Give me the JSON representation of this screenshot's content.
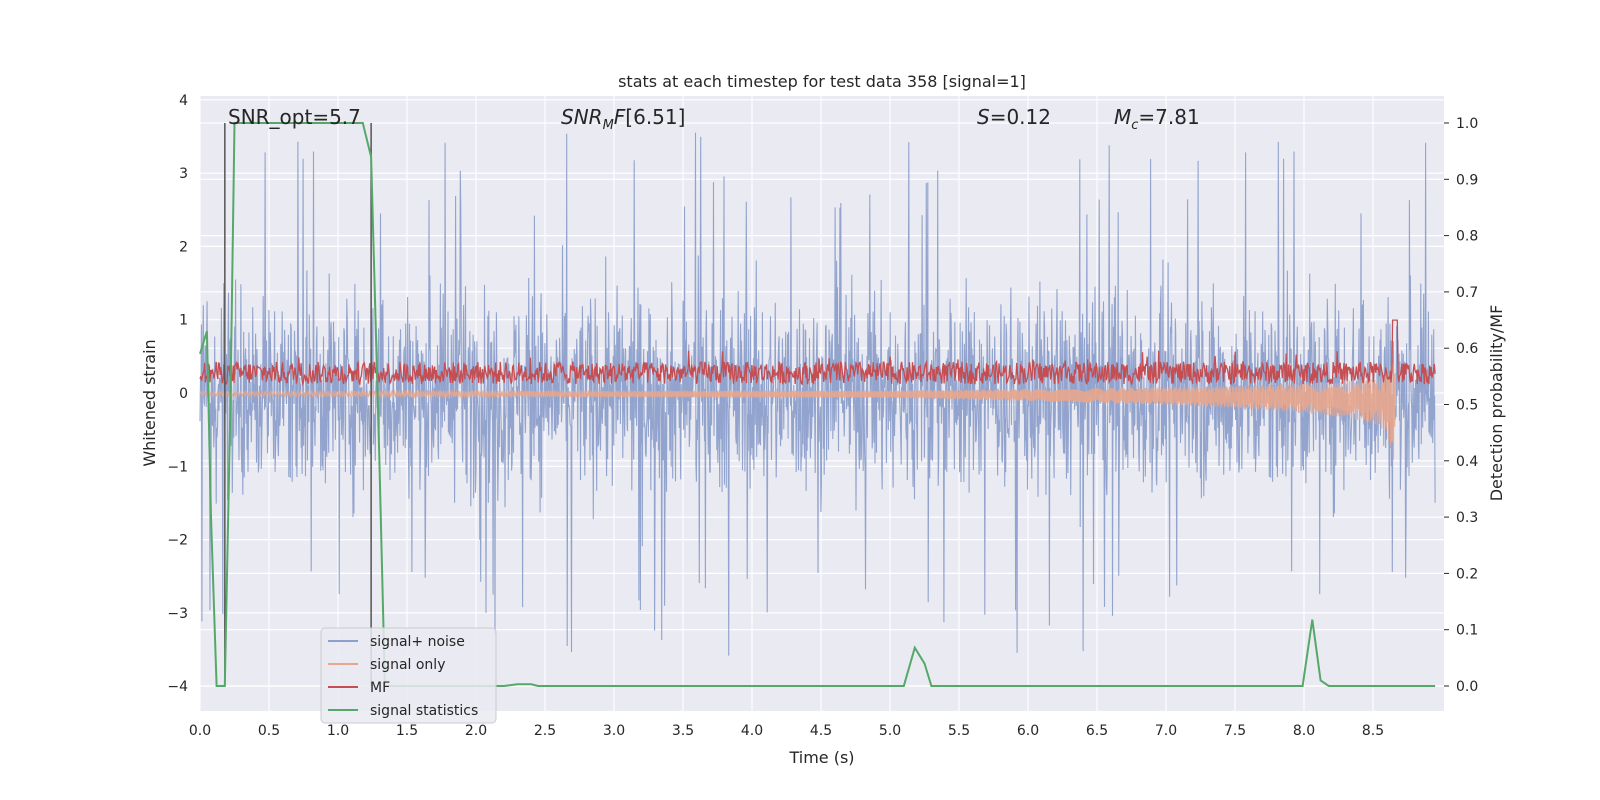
{
  "chart_data": {
    "type": "line",
    "title": "stats at each timestep for test data 358 [signal=1]",
    "xlabel": "Time (s)",
    "ylabel_left": "Whitened strain",
    "ylabel_right": "Detection probability/MF",
    "xlim": [
      0.0,
      9.0
    ],
    "ylim_left": [
      -4.35,
      4.05
    ],
    "ylim_right": [
      -0.045,
      1.04
    ],
    "xticks": [
      "0.0",
      "0.5",
      "1.0",
      "1.5",
      "2.0",
      "2.5",
      "3.0",
      "3.5",
      "4.0",
      "4.5",
      "5.0",
      "5.5",
      "6.0",
      "6.5",
      "7.0",
      "7.5",
      "8.0",
      "8.5"
    ],
    "yticks_left": [
      "−4",
      "−3",
      "−2",
      "−1",
      "0",
      "1",
      "2",
      "3",
      "4"
    ],
    "yticks_right": [
      "0.0",
      "0.1",
      "0.2",
      "0.3",
      "0.4",
      "0.5",
      "0.6",
      "0.7",
      "0.8",
      "0.9",
      "1.0"
    ],
    "grid": true,
    "legend_placement": "lower-left",
    "annotations": {
      "snr_opt": "SNR_opt=5.7",
      "snr_mf": "[6.51]",
      "s_value": "=0.12",
      "mc_value": "=7.81"
    },
    "vlines_x": [
      0.18,
      1.24
    ],
    "series": [
      {
        "name": "signal+ noise",
        "color": "#8da0cb",
        "axis": "left",
        "kind": "noise band",
        "approx_envelope": [
          -2.6,
          2.6
        ],
        "spikes_to": [
          -4.0,
          3.6
        ]
      },
      {
        "name": "signal only",
        "color": "#e8a68d",
        "axis": "left",
        "kind": "chirp",
        "x": [
          0.0,
          5.0,
          6.0,
          7.0,
          7.5,
          8.0,
          8.3,
          8.5,
          8.6,
          8.66
        ],
        "amplitude": [
          0.03,
          0.05,
          0.08,
          0.12,
          0.15,
          0.2,
          0.25,
          0.3,
          0.4,
          0.75
        ]
      },
      {
        "name": "MF",
        "color": "#c44e52",
        "axis": "right",
        "kind": "noisy",
        "baseline": 0.55,
        "approx_range": [
          0.52,
          0.6
        ],
        "peak": {
          "x": 8.66,
          "y": 0.65
        }
      },
      {
        "name": "signal statistics",
        "color": "#55a868",
        "axis": "right",
        "x": [
          0.0,
          0.05,
          0.08,
          0.12,
          0.18,
          0.22,
          0.25,
          0.3,
          1.18,
          1.24,
          1.3,
          1.34,
          2.2,
          2.3,
          2.4,
          2.45,
          5.1,
          5.18,
          5.25,
          5.3,
          7.99,
          8.06,
          8.12,
          8.18,
          8.95
        ],
        "y": [
          0.59,
          0.63,
          0.3,
          0.0,
          0.0,
          0.5,
          1.0,
          1.0,
          1.0,
          0.94,
          0.4,
          0.0,
          0.0,
          0.003,
          0.003,
          0.0,
          0.0,
          0.068,
          0.04,
          0.0,
          0.0,
          0.118,
          0.01,
          0.0,
          0.0
        ]
      }
    ]
  }
}
